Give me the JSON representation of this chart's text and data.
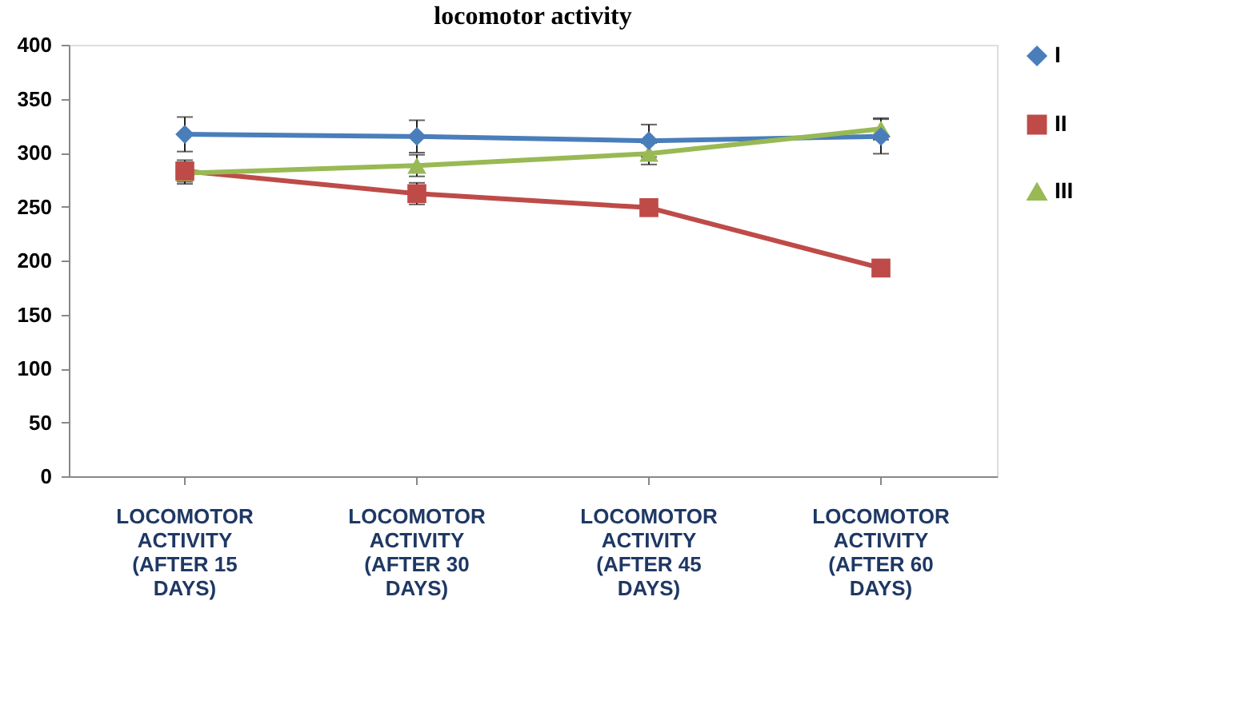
{
  "chart_data": {
    "type": "line",
    "title": "locomotor activity",
    "categories": [
      "LOCOMOTOR\nACTIVITY\n(AFTER 15\nDAYS)",
      "LOCOMOTOR\nACTIVITY\n(AFTER 30\nDAYS)",
      "LOCOMOTOR\nACTIVITY\n(AFTER 45\nDAYS)",
      "LOCOMOTOR\nACTIVITY\n(AFTER 60\nDAYS)"
    ],
    "series": [
      {
        "name": "I",
        "color": "#4a7ebb",
        "marker": "diamond",
        "values": [
          317,
          315,
          311,
          315
        ],
        "errors": [
          16,
          15,
          15,
          16
        ]
      },
      {
        "name": "II",
        "color": "#be4b48",
        "marker": "square",
        "values": [
          283,
          262,
          249,
          193
        ],
        "errors": [
          10,
          10,
          null,
          null
        ]
      },
      {
        "name": "III",
        "color": "#98b954",
        "marker": "triangle",
        "values": [
          281,
          288,
          299,
          322
        ],
        "errors": [
          10,
          10,
          10,
          10
        ]
      }
    ],
    "ylim": [
      0,
      400
    ],
    "yticks": [
      0,
      50,
      100,
      150,
      200,
      250,
      300,
      350,
      400
    ],
    "grid": false,
    "legend": "right",
    "line_style": "solid"
  }
}
